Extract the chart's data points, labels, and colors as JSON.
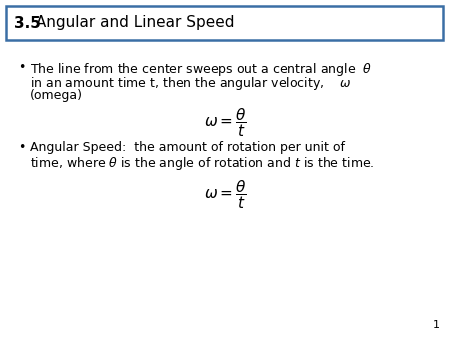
{
  "title_bold": "3.5",
  "title_rest": " Angular and Linear Speed",
  "bg_color": "#ffffff",
  "border_color": "#3b6ea5",
  "page_num": "1",
  "text_color": "#000000",
  "title_fontsize": 11,
  "body_fontsize": 9.0,
  "formula_fontsize": 11
}
